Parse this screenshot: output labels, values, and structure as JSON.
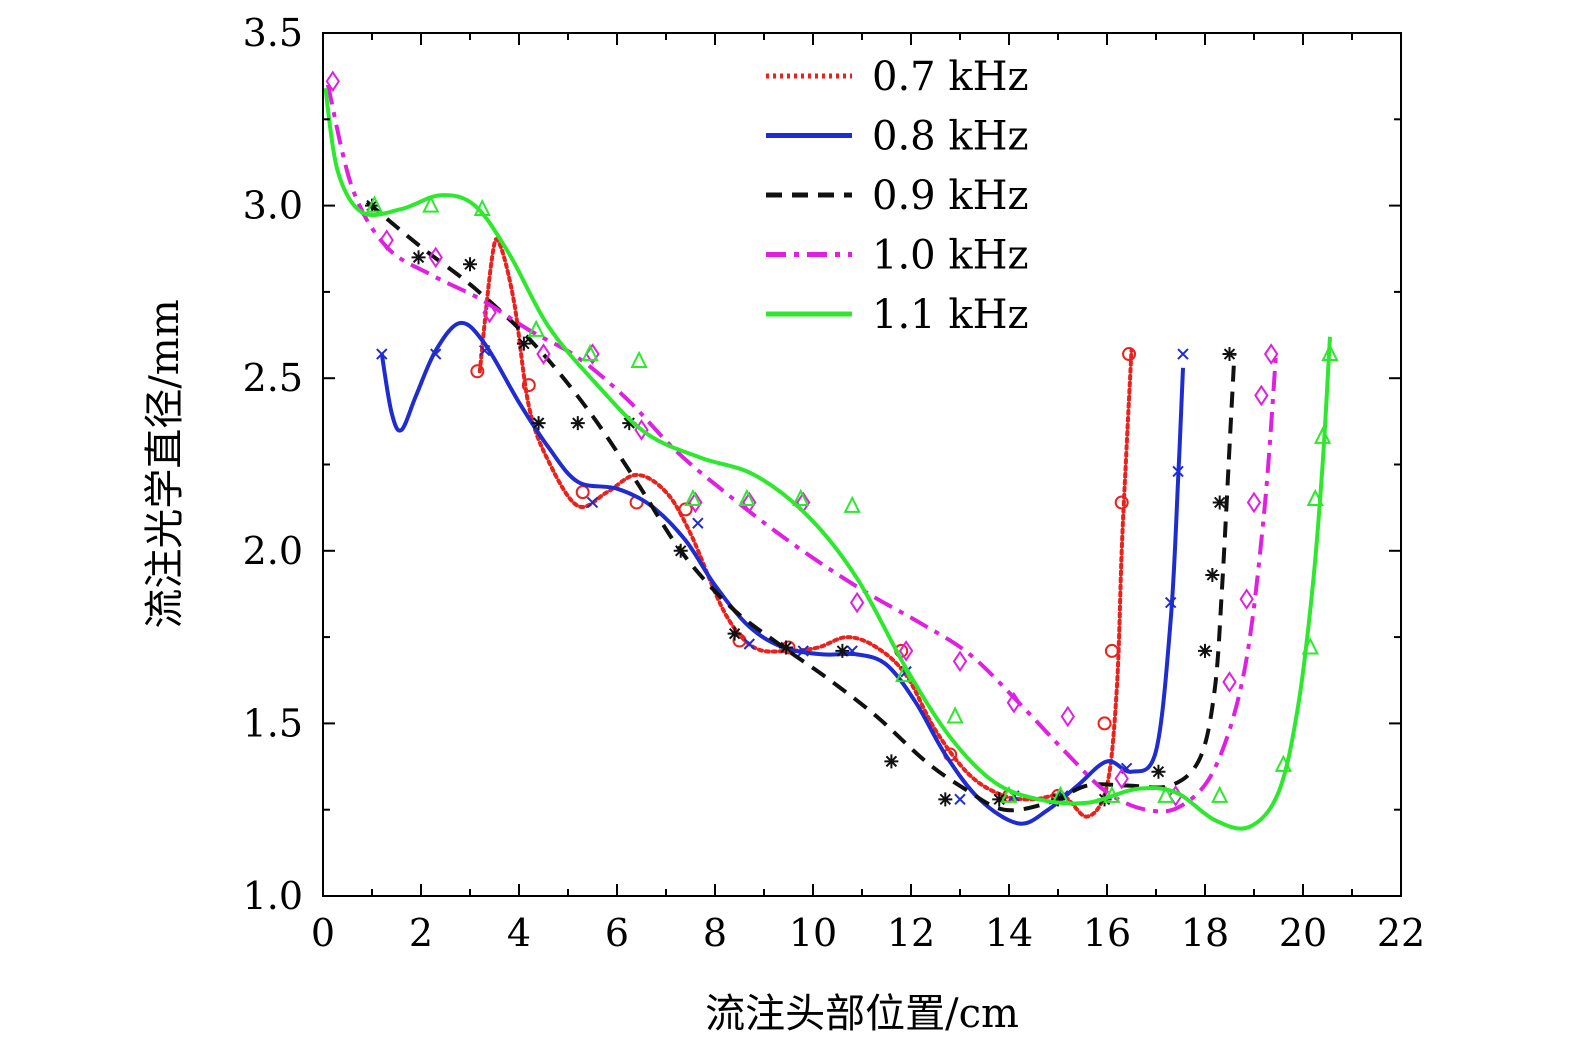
{
  "chart_data": {
    "type": "line",
    "title": "",
    "xlabel": "流注头部位置/cm",
    "ylabel": "流注光学直径/mm",
    "xlim": [
      0,
      22
    ],
    "ylim": [
      1.0,
      3.5
    ],
    "xticks": [
      "0",
      "2",
      "4",
      "6",
      "8",
      "10",
      "12",
      "14",
      "16",
      "18",
      "20",
      "22"
    ],
    "yticks": [
      "1.0",
      "1.5",
      "2.0",
      "2.5",
      "3.0",
      "3.5"
    ],
    "grid": false,
    "legend_position": "top-center",
    "series": [
      {
        "name": "0.7 kHz",
        "color": "#e8231e",
        "line_style": "dotted",
        "marker": "circle",
        "curve": [
          [
            3.2,
            2.52
          ],
          [
            3.45,
            2.85
          ],
          [
            3.6,
            2.89
          ],
          [
            3.9,
            2.72
          ],
          [
            4.2,
            2.42
          ],
          [
            4.6,
            2.26
          ],
          [
            5.2,
            2.13
          ],
          [
            5.8,
            2.17
          ],
          [
            6.4,
            2.22
          ],
          [
            7.0,
            2.17
          ],
          [
            7.5,
            2.05
          ],
          [
            8.2,
            1.82
          ],
          [
            8.8,
            1.72
          ],
          [
            9.5,
            1.71
          ],
          [
            10.1,
            1.72
          ],
          [
            10.7,
            1.75
          ],
          [
            11.3,
            1.72
          ],
          [
            11.9,
            1.64
          ],
          [
            12.5,
            1.48
          ],
          [
            13.2,
            1.35
          ],
          [
            13.9,
            1.29
          ],
          [
            14.5,
            1.28
          ],
          [
            15.1,
            1.29
          ],
          [
            15.6,
            1.23
          ],
          [
            16.0,
            1.32
          ],
          [
            16.2,
            1.6
          ],
          [
            16.3,
            2.0
          ],
          [
            16.4,
            2.3
          ],
          [
            16.5,
            2.58
          ]
        ],
        "points": [
          [
            3.15,
            2.52
          ],
          [
            4.2,
            2.48
          ],
          [
            5.3,
            2.17
          ],
          [
            6.4,
            2.14
          ],
          [
            7.4,
            2.12
          ],
          [
            8.5,
            1.74
          ],
          [
            9.5,
            1.72
          ],
          [
            11.8,
            1.71
          ],
          [
            12.8,
            1.41
          ],
          [
            14.0,
            1.29
          ],
          [
            15.0,
            1.29
          ],
          [
            15.95,
            1.5
          ],
          [
            16.1,
            1.71
          ],
          [
            16.3,
            2.14
          ],
          [
            16.45,
            2.57
          ]
        ]
      },
      {
        "name": "0.8 kHz",
        "color": "#1f2ccf",
        "line_style": "solid",
        "marker": "x",
        "curve": [
          [
            1.2,
            2.57
          ],
          [
            1.4,
            2.4
          ],
          [
            1.6,
            2.35
          ],
          [
            1.9,
            2.45
          ],
          [
            2.3,
            2.58
          ],
          [
            2.8,
            2.66
          ],
          [
            3.3,
            2.6
          ],
          [
            4.0,
            2.43
          ],
          [
            4.6,
            2.3
          ],
          [
            5.2,
            2.2
          ],
          [
            6.0,
            2.18
          ],
          [
            6.7,
            2.13
          ],
          [
            7.4,
            2.03
          ],
          [
            8.0,
            1.9
          ],
          [
            8.7,
            1.78
          ],
          [
            9.4,
            1.72
          ],
          [
            10.2,
            1.7
          ],
          [
            10.9,
            1.7
          ],
          [
            11.5,
            1.67
          ],
          [
            12.1,
            1.56
          ],
          [
            12.7,
            1.41
          ],
          [
            13.4,
            1.28
          ],
          [
            14.2,
            1.21
          ],
          [
            14.8,
            1.25
          ],
          [
            15.4,
            1.32
          ],
          [
            16.0,
            1.39
          ],
          [
            16.5,
            1.36
          ],
          [
            17.0,
            1.42
          ],
          [
            17.3,
            1.8
          ],
          [
            17.45,
            2.2
          ],
          [
            17.55,
            2.53
          ]
        ],
        "points": [
          [
            1.2,
            2.57
          ],
          [
            2.3,
            2.57
          ],
          [
            3.3,
            2.58
          ],
          [
            4.4,
            2.37
          ],
          [
            5.5,
            2.14
          ],
          [
            7.65,
            2.08
          ],
          [
            8.7,
            1.73
          ],
          [
            9.8,
            1.71
          ],
          [
            10.8,
            1.71
          ],
          [
            11.9,
            1.65
          ],
          [
            13.0,
            1.28
          ],
          [
            14.1,
            1.29
          ],
          [
            15.1,
            1.29
          ],
          [
            16.4,
            1.37
          ],
          [
            17.3,
            1.85
          ],
          [
            17.45,
            2.23
          ],
          [
            17.55,
            2.57
          ]
        ]
      },
      {
        "name": "0.9 kHz",
        "color": "#111111",
        "line_style": "dashed",
        "marker": "asterisk",
        "curve": [
          [
            0.9,
            3.01
          ],
          [
            2.0,
            2.88
          ],
          [
            3.1,
            2.76
          ],
          [
            4.3,
            2.6
          ],
          [
            5.4,
            2.41
          ],
          [
            6.4,
            2.2
          ],
          [
            7.3,
            2.0
          ],
          [
            8.3,
            1.84
          ],
          [
            9.3,
            1.73
          ],
          [
            10.3,
            1.63
          ],
          [
            11.3,
            1.52
          ],
          [
            12.3,
            1.39
          ],
          [
            13.1,
            1.31
          ],
          [
            13.9,
            1.25
          ],
          [
            14.8,
            1.27
          ],
          [
            15.6,
            1.32
          ],
          [
            16.4,
            1.32
          ],
          [
            17.3,
            1.32
          ],
          [
            17.9,
            1.4
          ],
          [
            18.2,
            1.6
          ],
          [
            18.35,
            1.9
          ],
          [
            18.5,
            2.3
          ],
          [
            18.6,
            2.57
          ]
        ],
        "points": [
          [
            1.0,
            3.0
          ],
          [
            1.95,
            2.85
          ],
          [
            3.0,
            2.83
          ],
          [
            4.1,
            2.6
          ],
          [
            4.4,
            2.37
          ],
          [
            5.2,
            2.37
          ],
          [
            6.25,
            2.37
          ],
          [
            7.3,
            2.0
          ],
          [
            8.4,
            1.76
          ],
          [
            9.45,
            1.72
          ],
          [
            10.6,
            1.71
          ],
          [
            11.6,
            1.39
          ],
          [
            12.7,
            1.28
          ],
          [
            13.8,
            1.28
          ],
          [
            15.0,
            1.28
          ],
          [
            15.95,
            1.28
          ],
          [
            17.05,
            1.36
          ],
          [
            18.0,
            1.71
          ],
          [
            18.15,
            1.93
          ],
          [
            18.3,
            2.14
          ],
          [
            18.5,
            2.57
          ]
        ]
      },
      {
        "name": "1.0 kHz",
        "color": "#e020e0",
        "line_style": "dashdot",
        "marker": "diamond",
        "curve": [
          [
            0.1,
            3.35
          ],
          [
            0.6,
            3.05
          ],
          [
            1.3,
            2.88
          ],
          [
            2.2,
            2.8
          ],
          [
            3.2,
            2.73
          ],
          [
            4.2,
            2.64
          ],
          [
            5.2,
            2.56
          ],
          [
            6.2,
            2.44
          ],
          [
            7.2,
            2.29
          ],
          [
            8.2,
            2.17
          ],
          [
            9.2,
            2.06
          ],
          [
            10.2,
            1.96
          ],
          [
            11.2,
            1.87
          ],
          [
            12.2,
            1.79
          ],
          [
            13.2,
            1.7
          ],
          [
            14.2,
            1.56
          ],
          [
            15.2,
            1.41
          ],
          [
            16.0,
            1.3
          ],
          [
            16.8,
            1.25
          ],
          [
            17.5,
            1.26
          ],
          [
            18.2,
            1.37
          ],
          [
            18.8,
            1.65
          ],
          [
            19.2,
            2.1
          ],
          [
            19.45,
            2.57
          ]
        ],
        "points": [
          [
            0.2,
            3.36
          ],
          [
            1.3,
            2.9
          ],
          [
            2.3,
            2.85
          ],
          [
            3.4,
            2.69
          ],
          [
            4.5,
            2.57
          ],
          [
            5.5,
            2.57
          ],
          [
            6.5,
            2.35
          ],
          [
            7.6,
            2.14
          ],
          [
            8.7,
            2.14
          ],
          [
            9.8,
            2.14
          ],
          [
            10.9,
            1.85
          ],
          [
            11.9,
            1.71
          ],
          [
            13.0,
            1.68
          ],
          [
            14.1,
            1.56
          ],
          [
            15.2,
            1.52
          ],
          [
            16.3,
            1.34
          ],
          [
            17.4,
            1.29
          ],
          [
            18.5,
            1.62
          ],
          [
            18.85,
            1.86
          ],
          [
            19.0,
            2.14
          ],
          [
            19.15,
            2.45
          ],
          [
            19.35,
            2.57
          ]
        ]
      },
      {
        "name": "1.1 kHz",
        "color": "#2ee82e",
        "line_style": "solid",
        "marker": "triangle",
        "curve": [
          [
            0.05,
            3.34
          ],
          [
            0.3,
            3.1
          ],
          [
            0.8,
            2.98
          ],
          [
            1.6,
            2.99
          ],
          [
            2.4,
            3.03
          ],
          [
            3.1,
            3.0
          ],
          [
            3.8,
            2.86
          ],
          [
            4.6,
            2.65
          ],
          [
            5.6,
            2.48
          ],
          [
            6.6,
            2.34
          ],
          [
            7.7,
            2.27
          ],
          [
            8.8,
            2.22
          ],
          [
            9.9,
            2.1
          ],
          [
            10.9,
            1.92
          ],
          [
            11.9,
            1.66
          ],
          [
            12.8,
            1.46
          ],
          [
            13.7,
            1.33
          ],
          [
            14.6,
            1.28
          ],
          [
            15.6,
            1.27
          ],
          [
            16.6,
            1.31
          ],
          [
            17.4,
            1.3
          ],
          [
            18.2,
            1.22
          ],
          [
            18.9,
            1.2
          ],
          [
            19.5,
            1.3
          ],
          [
            19.9,
            1.55
          ],
          [
            20.2,
            1.9
          ],
          [
            20.4,
            2.25
          ],
          [
            20.55,
            2.62
          ]
        ],
        "points": [
          [
            1.05,
            3.0
          ],
          [
            2.2,
            3.0
          ],
          [
            3.25,
            2.99
          ],
          [
            4.35,
            2.64
          ],
          [
            5.45,
            2.57
          ],
          [
            6.45,
            2.55
          ],
          [
            7.55,
            2.15
          ],
          [
            8.65,
            2.15
          ],
          [
            9.75,
            2.15
          ],
          [
            10.8,
            2.13
          ],
          [
            11.85,
            1.64
          ],
          [
            12.9,
            1.52
          ],
          [
            14.0,
            1.29
          ],
          [
            15.05,
            1.29
          ],
          [
            16.1,
            1.29
          ],
          [
            17.2,
            1.29
          ],
          [
            18.3,
            1.29
          ],
          [
            19.6,
            1.38
          ],
          [
            20.15,
            1.72
          ],
          [
            20.25,
            2.15
          ],
          [
            20.4,
            2.33
          ],
          [
            20.55,
            2.57
          ]
        ]
      }
    ]
  }
}
